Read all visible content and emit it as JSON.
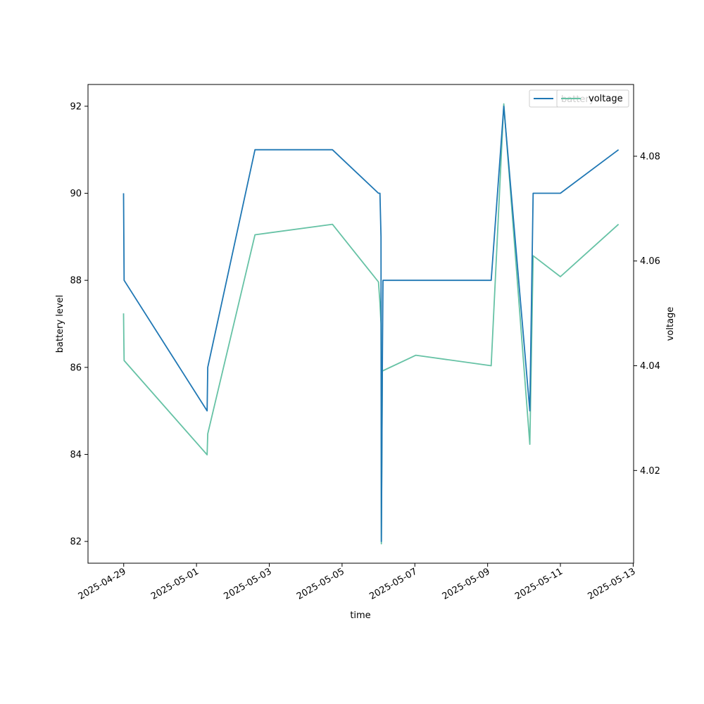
{
  "chart_data": {
    "type": "line",
    "title": "",
    "xlabel": "time",
    "ylabel": "battery level",
    "y2label": "voltage",
    "xlim": [
      "2025-04-28T00:27:00",
      "2025-05-13T00:16:00"
    ],
    "ylim": [
      81.5,
      92.5
    ],
    "y2lim": [
      4.0023,
      4.0937
    ],
    "x_ticks": [
      "2025-04-29",
      "2025-05-01",
      "2025-05-03",
      "2025-05-05",
      "2025-05-07",
      "2025-05-09",
      "2025-05-11",
      "2025-05-13"
    ],
    "y_ticks": [
      82,
      84,
      86,
      88,
      90,
      92
    ],
    "y2_ticks": [
      4.02,
      4.04,
      4.06,
      4.08
    ],
    "grid": false,
    "legend_entries": [
      {
        "name": "battery",
        "color": "#1f77b4"
      },
      {
        "name": "voltage",
        "color": "#66c2a5"
      }
    ],
    "legend_placement": "top-right",
    "series": [
      {
        "name": "battery",
        "axis": "left",
        "color": "#1f77b4",
        "points": [
          {
            "x": "2025-04-28T23:55",
            "y": 90
          },
          {
            "x": "2025-04-29T00:05",
            "y": 89
          },
          {
            "x": "2025-04-29T00:15",
            "y": 88
          },
          {
            "x": "2025-05-01T07:00",
            "y": 85
          },
          {
            "x": "2025-05-01T07:25",
            "y": 86
          },
          {
            "x": "2025-05-02T14:35",
            "y": 91
          },
          {
            "x": "2025-05-04T17:40",
            "y": 91
          },
          {
            "x": "2025-05-06T00:00",
            "y": 90
          },
          {
            "x": "2025-05-06T01:00",
            "y": 90
          },
          {
            "x": "2025-05-06T01:40",
            "y": 89
          },
          {
            "x": "2025-05-06T01:55",
            "y": 82
          },
          {
            "x": "2025-05-06T02:35",
            "y": 86
          },
          {
            "x": "2025-05-06T03:00",
            "y": 88
          },
          {
            "x": "2025-05-09T02:20",
            "y": 88
          },
          {
            "x": "2025-05-09T10:40",
            "y": 92
          },
          {
            "x": "2025-05-10T03:50",
            "y": 85
          },
          {
            "x": "2025-05-10T06:00",
            "y": 90
          },
          {
            "x": "2025-05-11T00:00",
            "y": 90
          },
          {
            "x": "2025-05-12T14:20",
            "y": 91
          }
        ]
      },
      {
        "name": "voltage",
        "axis": "right",
        "color": "#66c2a5",
        "points": [
          {
            "x": "2025-04-28T23:55",
            "y": 4.05
          },
          {
            "x": "2025-04-29T00:05",
            "y": 4.045
          },
          {
            "x": "2025-04-29T00:15",
            "y": 4.041
          },
          {
            "x": "2025-05-01T07:00",
            "y": 4.023
          },
          {
            "x": "2025-05-01T07:25",
            "y": 4.027
          },
          {
            "x": "2025-05-02T14:35",
            "y": 4.065
          },
          {
            "x": "2025-05-04T17:40",
            "y": 4.067
          },
          {
            "x": "2025-05-06T00:00",
            "y": 4.056
          },
          {
            "x": "2025-05-06T01:00",
            "y": 4.052
          },
          {
            "x": "2025-05-06T01:40",
            "y": 4.048
          },
          {
            "x": "2025-05-06T01:55",
            "y": 4.006
          },
          {
            "x": "2025-05-06T02:35",
            "y": 4.039
          },
          {
            "x": "2025-05-07T00:40",
            "y": 4.042
          },
          {
            "x": "2025-05-09T02:20",
            "y": 4.04
          },
          {
            "x": "2025-05-09T10:40",
            "y": 4.09
          },
          {
            "x": "2025-05-10T03:50",
            "y": 4.025
          },
          {
            "x": "2025-05-10T06:00",
            "y": 4.061
          },
          {
            "x": "2025-05-11T00:00",
            "y": 4.057
          },
          {
            "x": "2025-05-12T14:20",
            "y": 4.067
          }
        ]
      }
    ]
  }
}
